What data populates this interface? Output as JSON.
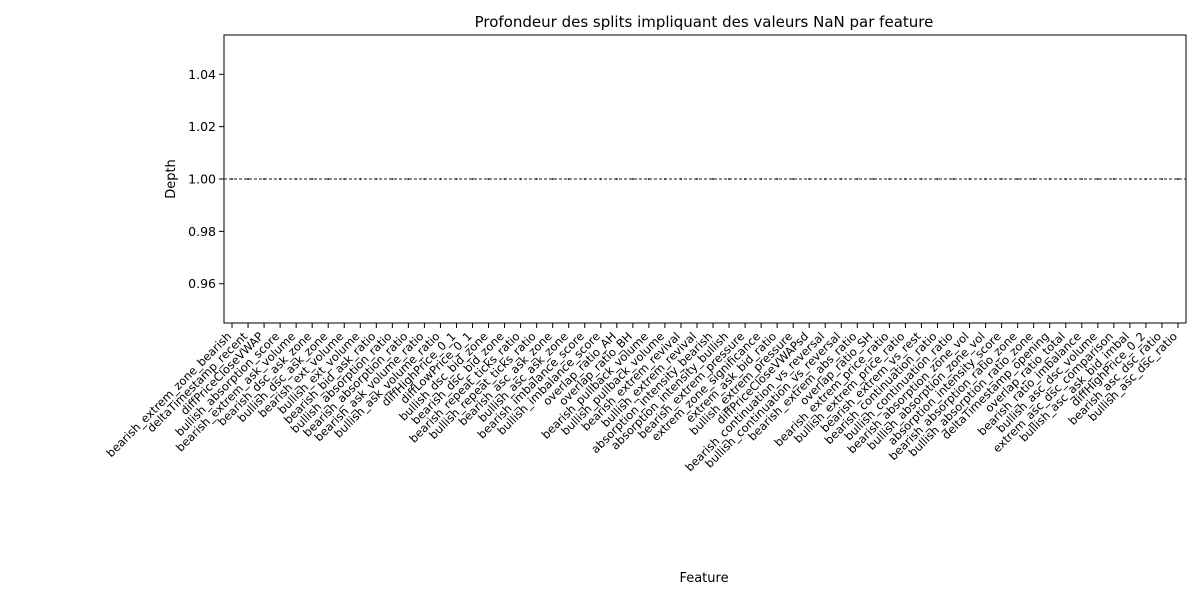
{
  "chart_data": {
    "type": "line",
    "title": "Profondeur des splits impliquant des valeurs NaN par feature",
    "xlabel": "Feature",
    "ylabel": "Depth",
    "ylim": [
      0.945,
      1.055
    ],
    "yticks": [
      "0.96",
      "0.98",
      "1.00",
      "1.02",
      "1.04"
    ],
    "ytick_values": [
      0.96,
      0.98,
      1.0,
      1.02,
      1.04
    ],
    "grid": false,
    "legend": "none",
    "line_color": "#444444",
    "line_style": "dashed",
    "depth_value": 1.0,
    "categories": [
      "bearish_extrem_zone_bearish",
      "deltaTimestamp_recent",
      "diffPriceCloseVWAP",
      "bullish_absorption_score",
      "bearish_extrem_ask_volume",
      "bearish_dsc_ask_zone",
      "bullish_dsc_ask_zone",
      "bearish_ext_volume",
      "bullish_ext_volume",
      "bearish_bid_ask_ratio",
      "bullish_absorption_ratio",
      "bearish_absorption_ratio",
      "bearish_ask_volume_ratio",
      "bullish_ask_volume_ratio",
      "diffHighPrice_0_1",
      "diffLowPrice_0_1",
      "bullish_dsc_bid_zone",
      "bearish_dsc_bid_zone",
      "bearish_repeat_ticks_ratio",
      "bullish_repeat_ticks_ratio",
      "bearish_asc_ask_zone",
      "bullish_asc_ask_zone",
      "bearish_imbalance_score",
      "bullish_imbalance_score",
      "overlap_ratio_AH",
      "overlap_ratio_BH",
      "bearish_pullback_volume",
      "bullish_pullback_volume",
      "bearish_extrem_revival",
      "bullish_extrem_revival",
      "absorption_intensity_bearish",
      "absorption_intensity_bullish",
      "bearish_extrem_pressure",
      "extrem_zone_significance",
      "extrem_ask_bid_ratio",
      "bullish_extrem_pressure",
      "diffPriceCloseVWAPsd",
      "bearish_continuation_vs_reversal",
      "bullish_continuation_vs_reversal",
      "bearish_extrem_abs_ratio",
      "overlap_ratio_SH",
      "bearish_extrem_price_ratio",
      "bullish_extrem_price_ratio",
      "bearish_extrem_vs_rest",
      "bearish_continuation_ratio",
      "bullish_continuation_ratio",
      "bearish_absorption_zone_vol",
      "bullish_absorption_zone_vol",
      "absorption_intensity_score",
      "bearish_absorption_ratio_zone",
      "bullish_absorption_ratio_zone",
      "deltaTimestamp_opening",
      "overlap_ratio_total",
      "bearish_ratio_imbalance",
      "bullish_asc_dsc_volume",
      "extrem_asc_dsc_comparison",
      "bullish_asc_ask_bid_imbal",
      "diffHighPrice_0_2",
      "bearish_asc_dsc_ratio",
      "bullish_asc_dsc_ratio"
    ]
  }
}
